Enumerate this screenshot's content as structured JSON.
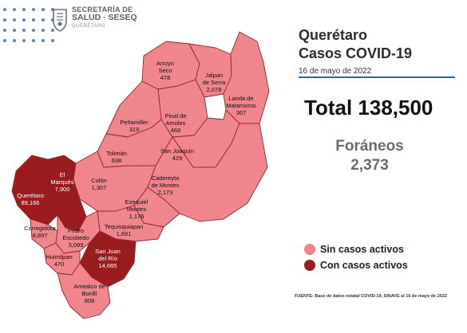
{
  "logo": {
    "line1": "SECRETARÍA DE",
    "line2": "SALUD · SESEQ",
    "line3": "QUERÉTARO"
  },
  "header": {
    "title_line1": "Querétaro",
    "title_line2": "Casos COVID-19",
    "date": "16 de mayo de 2022"
  },
  "summary": {
    "total": "Total 138,500",
    "foraneos_label": "Foráneos",
    "foraneos_value": "2,373"
  },
  "legend": {
    "items": [
      {
        "label": "Sin casos activos",
        "color": "#f0808a"
      },
      {
        "label": "Con casos activos",
        "color": "#9b1c1c"
      }
    ]
  },
  "source": "FUENTE: Base de datos estatal COVID-19, SINAVE al 16 de mayo de 2022",
  "colors": {
    "inactive": "#f0858c",
    "active": "#9b1c1c",
    "border": "#8a2a2e"
  },
  "municipalities": [
    {
      "name": "Arroyo Seco",
      "cases": "478",
      "active": false
    },
    {
      "name": "Jalpan de Serra",
      "cases": "2,078",
      "active": false
    },
    {
      "name": "Landa de Matamoros",
      "cases": "367",
      "active": false
    },
    {
      "name": "Pinal de Amoles",
      "cases": "468",
      "active": false
    },
    {
      "name": "Peñamiller",
      "cases": "319",
      "active": false
    },
    {
      "name": "San Joaquín",
      "cases": "429",
      "active": false
    },
    {
      "name": "Tolimán",
      "cases": "638",
      "active": false
    },
    {
      "name": "Cadereyta de Montes",
      "cases": "2,173",
      "active": false
    },
    {
      "name": "Colón",
      "cases": "1,307",
      "active": false
    },
    {
      "name": "El Marqués",
      "cases": "7,900",
      "active": true
    },
    {
      "name": "Querétaro",
      "cases": "89,166",
      "active": true
    },
    {
      "name": "Ezequiel Montes",
      "cases": "1,176",
      "active": false
    },
    {
      "name": "Tequisquiapan",
      "cases": "1,691",
      "active": false
    },
    {
      "name": "Corregidora",
      "cases": "8,897",
      "active": false
    },
    {
      "name": "Pedro Escobedo",
      "cases": "3,099",
      "active": false
    },
    {
      "name": "San Juan del Río",
      "cases": "14,665",
      "active": true
    },
    {
      "name": "Huimilpan",
      "cases": "470",
      "active": false
    },
    {
      "name": "Amealco de Bonfil",
      "cases": "806",
      "active": false
    }
  ]
}
